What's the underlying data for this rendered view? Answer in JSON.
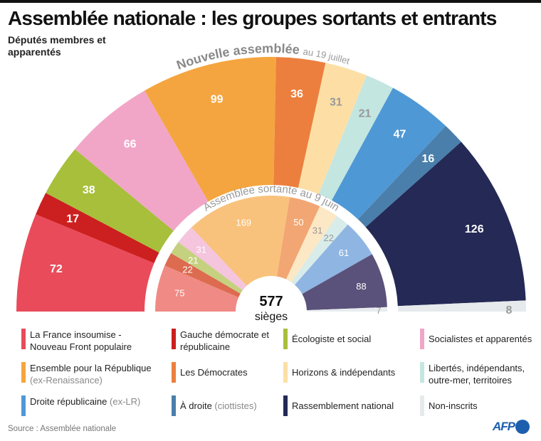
{
  "title": "Assemblée nationale : les groupes sortants et entrants",
  "subtitle": "Députés membres et apparentés",
  "source": "Source : Assemblée nationale",
  "logo": "AFP",
  "chart_data": {
    "type": "pie",
    "subtype": "parliament-semicircle",
    "total_label": "577",
    "total_unit": "sièges",
    "rings": [
      {
        "name_main": "Nouvelle assemblée",
        "name_date": "au 19 juillet",
        "position": "outer",
        "values": [
          72,
          17,
          38,
          66,
          99,
          36,
          31,
          21,
          47,
          16,
          126,
          8
        ],
        "colors": [
          "#e94b5a",
          "#cc1f1f",
          "#a7bf3b",
          "#f1a6c8",
          "#f5a53f",
          "#ec7f3e",
          "#fddfa6",
          "#c4e6e1",
          "#4f98d6",
          "#4a7fab",
          "#242955",
          "#e6eaec"
        ]
      },
      {
        "name_main": "Assemblée sortante au 9 juin",
        "name_date": "",
        "position": "inner",
        "values": [
          75,
          22,
          21,
          31,
          169,
          50,
          31,
          22,
          61,
          88,
          7
        ],
        "colors": [
          "#f08a84",
          "#dc6b50",
          "#c5d17f",
          "#f5c4dd",
          "#f9c27c",
          "#f2a673",
          "#fde8c5",
          "#d8ecea",
          "#8fb5e3",
          "#5a527a",
          "#e8ecef"
        ]
      }
    ],
    "legend": [
      {
        "label": "La France insoumise - Nouveau Front populaire",
        "note": "",
        "color": "#e94b5a"
      },
      {
        "label": "Gauche démocrate et républicaine",
        "note": "",
        "color": "#cc1f1f"
      },
      {
        "label": "Écologiste et social",
        "note": "",
        "color": "#a7bf3b"
      },
      {
        "label": "Socialistes et apparentés",
        "note": "",
        "color": "#f1a6c8"
      },
      {
        "label": "Ensemble pour la République",
        "note": "(ex-Renaissance)",
        "color": "#f5a53f"
      },
      {
        "label": "Les Démocrates",
        "note": "",
        "color": "#ec7f3e"
      },
      {
        "label": "Horizons & indépendants",
        "note": "",
        "color": "#fddfa6"
      },
      {
        "label": "Libertés, indépendants, outre-mer, territoires",
        "note": "",
        "color": "#c4e6e1"
      },
      {
        "label": "Droite républicaine",
        "note": "(ex-LR)",
        "color": "#4f98d6"
      },
      {
        "label": "À droite",
        "note": "(ciottistes)",
        "color": "#4a7fab"
      },
      {
        "label": "Rassemblement national",
        "note": "",
        "color": "#242955"
      },
      {
        "label": "Non-inscrits",
        "note": "",
        "color": "#e6eaec"
      }
    ]
  }
}
